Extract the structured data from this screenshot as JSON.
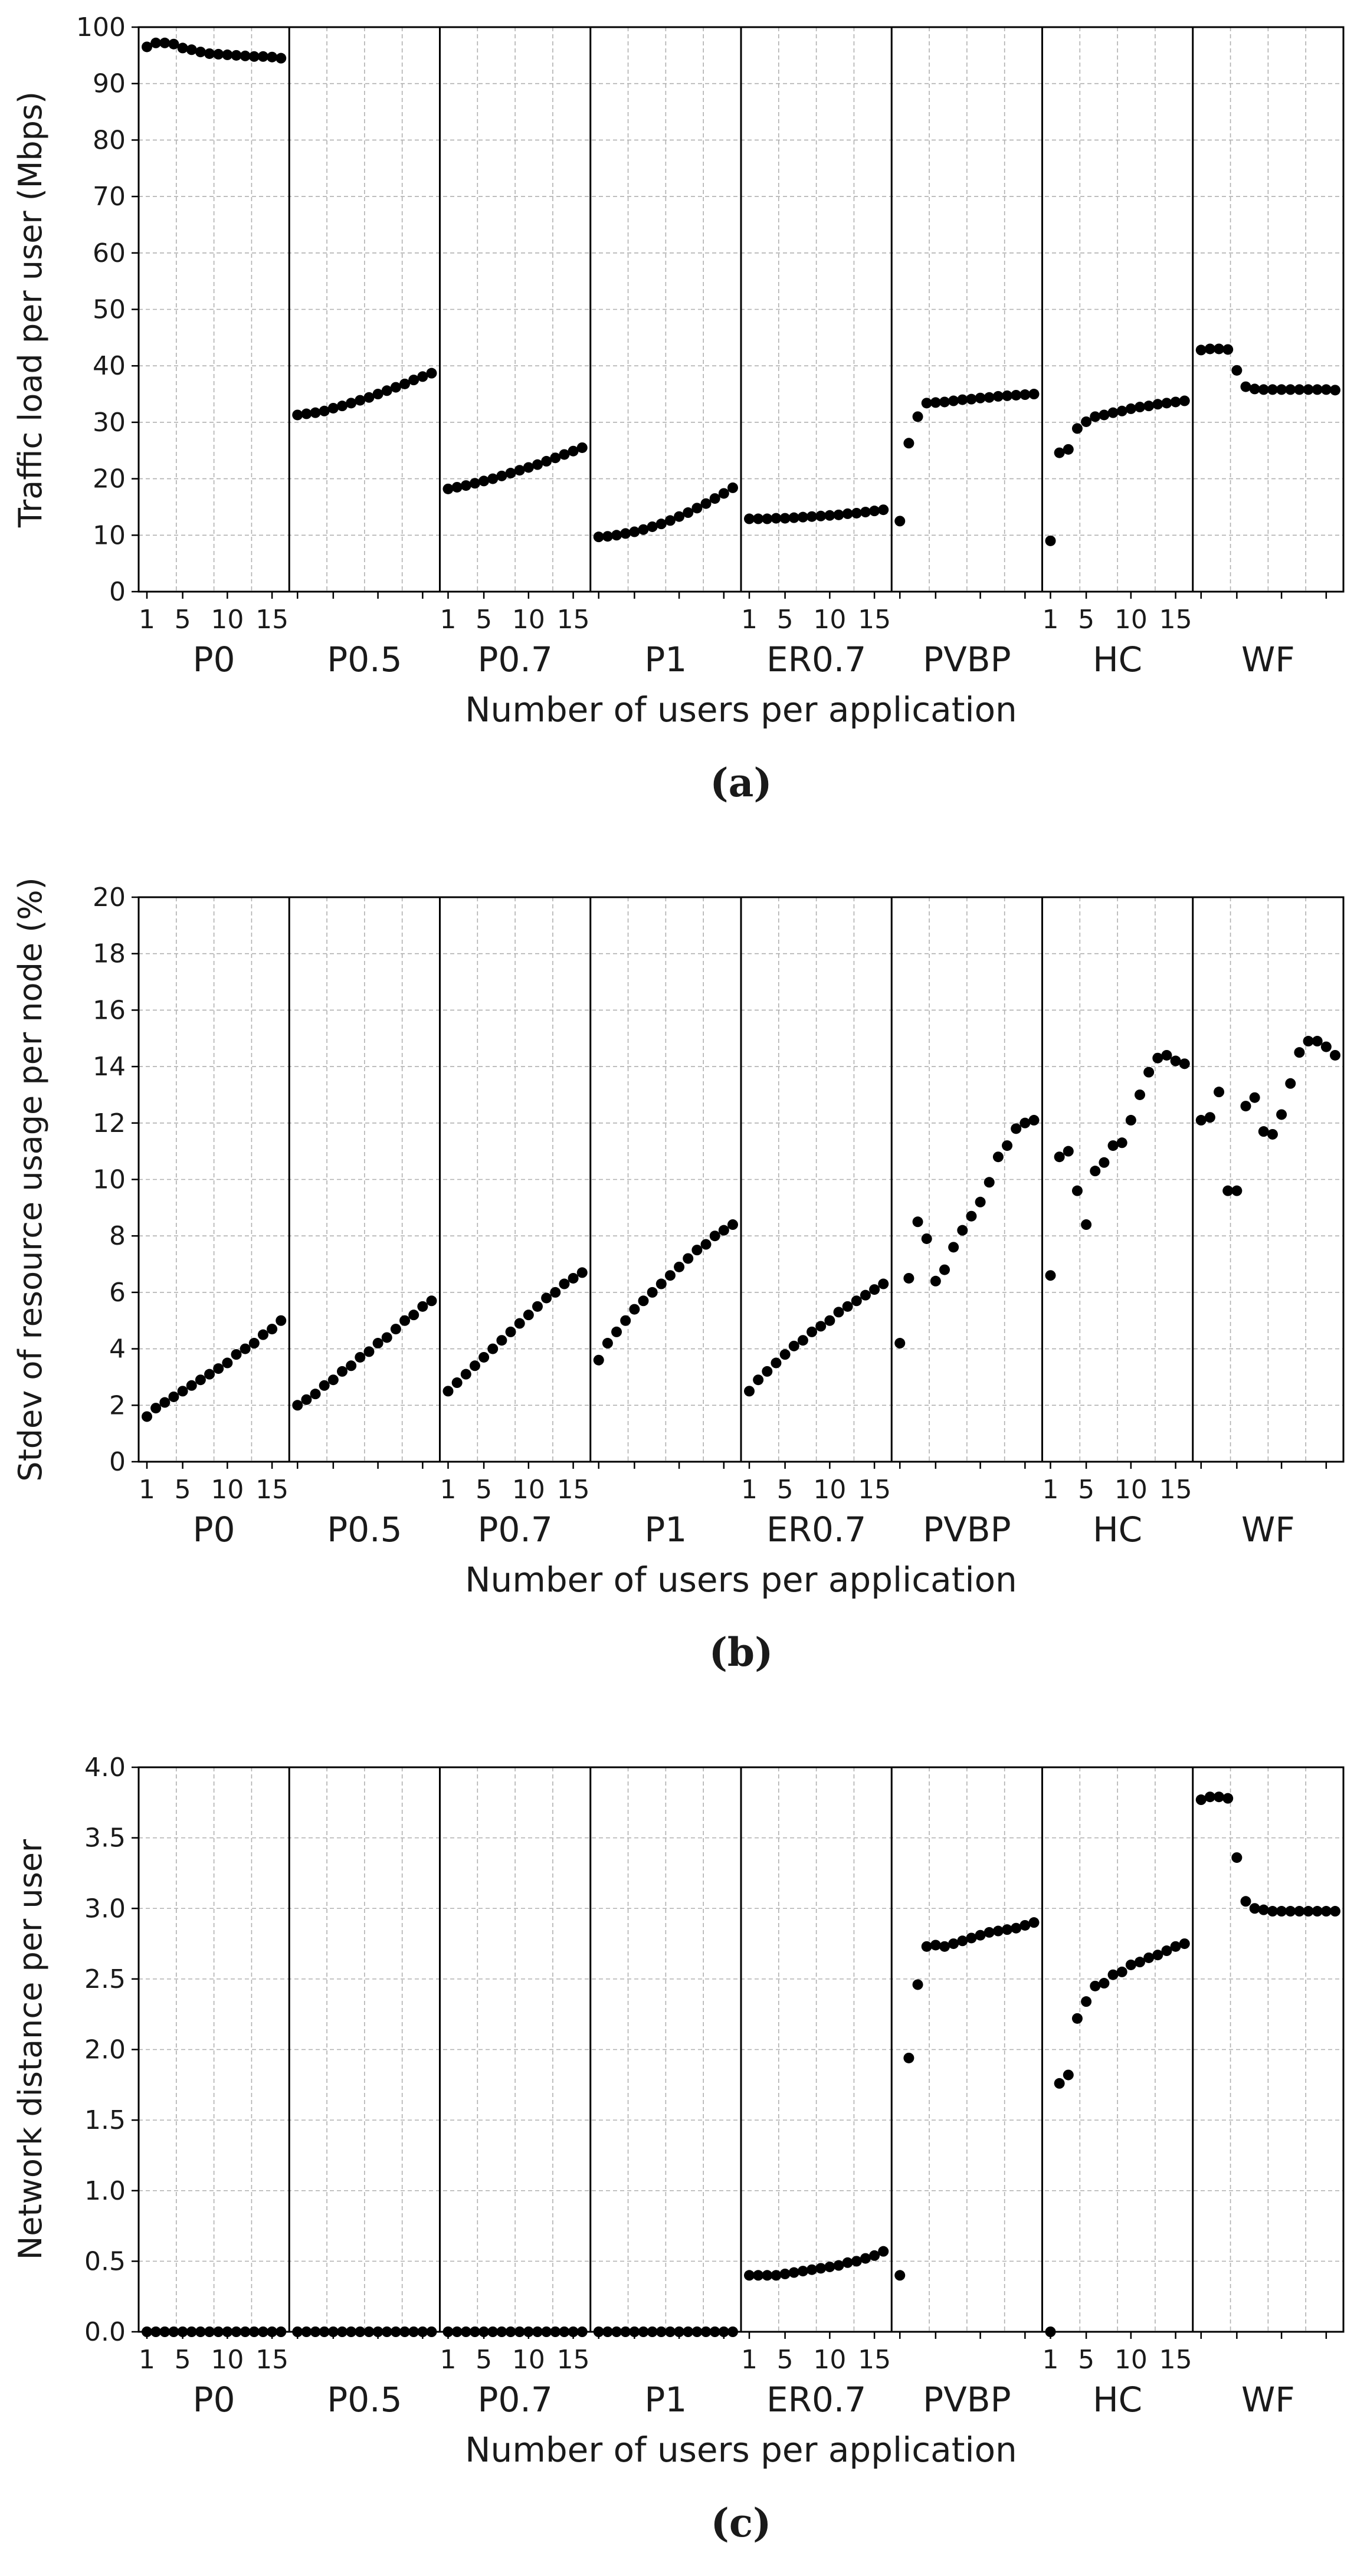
{
  "figure": {
    "panel_letters": [
      "a",
      "b",
      "c"
    ],
    "xlabel": "Number of users per application",
    "groups": [
      "P0",
      "P0.5",
      "P0.7",
      "P1",
      "ER0.7",
      "PVBP",
      "HC",
      "WF"
    ],
    "group_tick_labels": [
      "1",
      "5",
      "10",
      "15"
    ],
    "groups_with_tick_labels": [
      "P0",
      "P0.7",
      "ER0.7",
      "HC"
    ],
    "colors": {
      "marker": "#000000",
      "grid": "#b0b0b0",
      "axis": "#000000"
    }
  },
  "chart_data": [
    {
      "type": "scatter",
      "title": "",
      "panel": "(a)",
      "ylabel": "Traffic load per user (Mbps)",
      "xlabel": "Number of users per application",
      "ylim": [
        0,
        100
      ],
      "yticks": [
        0,
        10,
        20,
        30,
        40,
        50,
        60,
        70,
        80,
        90,
        100
      ],
      "grid": true,
      "x": [
        1,
        2,
        3,
        4,
        5,
        6,
        7,
        8,
        9,
        10,
        11,
        12,
        13,
        14,
        15,
        16
      ],
      "series": [
        {
          "group": "P0",
          "values": [
            96.5,
            97.2,
            97.2,
            97.0,
            96.3,
            96.0,
            95.6,
            95.3,
            95.2,
            95.1,
            95.0,
            94.9,
            94.8,
            94.8,
            94.7,
            94.5
          ]
        },
        {
          "group": "P0.5",
          "values": [
            31.3,
            31.5,
            31.7,
            32.0,
            32.5,
            32.9,
            33.4,
            33.9,
            34.4,
            35.0,
            35.6,
            36.2,
            36.8,
            37.5,
            38.1,
            38.7
          ]
        },
        {
          "group": "P0.7",
          "values": [
            18.2,
            18.5,
            18.8,
            19.2,
            19.6,
            20.0,
            20.5,
            21.0,
            21.5,
            22.0,
            22.5,
            23.1,
            23.7,
            24.3,
            24.9,
            25.5
          ]
        },
        {
          "group": "P1",
          "values": [
            9.7,
            9.8,
            10.0,
            10.3,
            10.6,
            11.0,
            11.5,
            12.0,
            12.6,
            13.3,
            14.0,
            14.8,
            15.6,
            16.5,
            17.4,
            18.4
          ]
        },
        {
          "group": "ER0.7",
          "values": [
            12.9,
            12.9,
            12.9,
            13.0,
            13.0,
            13.1,
            13.2,
            13.3,
            13.4,
            13.5,
            13.6,
            13.8,
            13.9,
            14.1,
            14.3,
            14.5
          ]
        },
        {
          "group": "PVBP",
          "values": [
            12.5,
            26.3,
            31.0,
            33.4,
            33.5,
            33.6,
            33.8,
            34.0,
            34.1,
            34.3,
            34.4,
            34.6,
            34.7,
            34.8,
            34.9,
            35.0
          ]
        },
        {
          "group": "HC",
          "values": [
            9.0,
            24.6,
            25.2,
            28.9,
            30.1,
            31.0,
            31.3,
            31.7,
            32.0,
            32.4,
            32.7,
            32.9,
            33.2,
            33.4,
            33.6,
            33.8
          ]
        },
        {
          "group": "WF",
          "values": [
            42.8,
            43.0,
            43.0,
            42.9,
            39.2,
            36.3,
            35.9,
            35.8,
            35.8,
            35.8,
            35.8,
            35.8,
            35.8,
            35.8,
            35.8,
            35.7
          ]
        }
      ]
    },
    {
      "type": "scatter",
      "title": "",
      "panel": "(b)",
      "ylabel": "Stdev of resource usage per node (%)",
      "xlabel": "Number of users per application",
      "ylim": [
        0,
        20
      ],
      "yticks": [
        0,
        2,
        4,
        6,
        8,
        10,
        12,
        14,
        16,
        18,
        20
      ],
      "grid": true,
      "x": [
        1,
        2,
        3,
        4,
        5,
        6,
        7,
        8,
        9,
        10,
        11,
        12,
        13,
        14,
        15,
        16
      ],
      "series": [
        {
          "group": "P0",
          "values": [
            1.6,
            1.9,
            2.1,
            2.3,
            2.5,
            2.7,
            2.9,
            3.1,
            3.3,
            3.5,
            3.8,
            4.0,
            4.2,
            4.5,
            4.7,
            5.0
          ]
        },
        {
          "group": "P0.5",
          "values": [
            2.0,
            2.2,
            2.4,
            2.7,
            2.9,
            3.2,
            3.4,
            3.7,
            3.9,
            4.2,
            4.4,
            4.7,
            5.0,
            5.2,
            5.5,
            5.7
          ]
        },
        {
          "group": "P0.7",
          "values": [
            2.5,
            2.8,
            3.1,
            3.4,
            3.7,
            4.0,
            4.3,
            4.6,
            4.9,
            5.2,
            5.5,
            5.8,
            6.0,
            6.3,
            6.5,
            6.7
          ]
        },
        {
          "group": "P1",
          "values": [
            3.6,
            4.2,
            4.6,
            5.0,
            5.4,
            5.7,
            6.0,
            6.3,
            6.6,
            6.9,
            7.2,
            7.5,
            7.7,
            8.0,
            8.2,
            8.4
          ]
        },
        {
          "group": "ER0.7",
          "values": [
            2.5,
            2.9,
            3.2,
            3.5,
            3.8,
            4.1,
            4.3,
            4.6,
            4.8,
            5.0,
            5.3,
            5.5,
            5.7,
            5.9,
            6.1,
            6.3
          ]
        },
        {
          "group": "PVBP",
          "values": [
            4.2,
            6.5,
            8.5,
            7.9,
            6.4,
            6.8,
            7.6,
            8.2,
            8.7,
            9.2,
            9.9,
            10.8,
            11.2,
            11.8,
            12.0,
            12.1
          ]
        },
        {
          "group": "HC",
          "values": [
            6.6,
            10.8,
            11.0,
            9.6,
            8.4,
            10.3,
            10.6,
            11.2,
            11.3,
            12.1,
            13.0,
            13.8,
            14.3,
            14.4,
            14.2,
            14.1
          ]
        },
        {
          "group": "WF",
          "values": [
            12.1,
            12.2,
            13.1,
            9.6,
            9.6,
            12.6,
            12.9,
            11.7,
            11.6,
            12.3,
            13.4,
            14.5,
            14.9,
            14.9,
            14.7,
            14.4
          ]
        }
      ]
    },
    {
      "type": "scatter",
      "title": "",
      "panel": "(c)",
      "ylabel": "Network distance per user",
      "xlabel": "Number of users per application",
      "ylim": [
        0,
        4
      ],
      "yticks": [
        0.0,
        0.5,
        1.0,
        1.5,
        2.0,
        2.5,
        3.0,
        3.5,
        4.0
      ],
      "grid": true,
      "x": [
        1,
        2,
        3,
        4,
        5,
        6,
        7,
        8,
        9,
        10,
        11,
        12,
        13,
        14,
        15,
        16
      ],
      "series": [
        {
          "group": "P0",
          "values": [
            0,
            0,
            0,
            0,
            0,
            0,
            0,
            0,
            0,
            0,
            0,
            0,
            0,
            0,
            0,
            0
          ]
        },
        {
          "group": "P0.5",
          "values": [
            0,
            0,
            0,
            0,
            0,
            0,
            0,
            0,
            0,
            0,
            0,
            0,
            0,
            0,
            0,
            0
          ]
        },
        {
          "group": "P0.7",
          "values": [
            0,
            0,
            0,
            0,
            0,
            0,
            0,
            0,
            0,
            0,
            0,
            0,
            0,
            0,
            0,
            0
          ]
        },
        {
          "group": "P1",
          "values": [
            0,
            0,
            0,
            0,
            0,
            0,
            0,
            0,
            0,
            0,
            0,
            0,
            0,
            0,
            0,
            0
          ]
        },
        {
          "group": "ER0.7",
          "values": [
            0.4,
            0.4,
            0.4,
            0.4,
            0.41,
            0.42,
            0.43,
            0.44,
            0.45,
            0.46,
            0.47,
            0.49,
            0.5,
            0.52,
            0.54,
            0.57
          ]
        },
        {
          "group": "PVBP",
          "values": [
            0.4,
            1.94,
            2.46,
            2.73,
            2.74,
            2.73,
            2.75,
            2.77,
            2.79,
            2.81,
            2.83,
            2.84,
            2.85,
            2.86,
            2.88,
            2.9
          ]
        },
        {
          "group": "HC",
          "values": [
            0.0,
            1.76,
            1.82,
            2.22,
            2.34,
            2.45,
            2.47,
            2.53,
            2.55,
            2.6,
            2.62,
            2.65,
            2.67,
            2.7,
            2.73,
            2.75
          ]
        },
        {
          "group": "WF",
          "values": [
            3.77,
            3.79,
            3.79,
            3.78,
            3.36,
            3.05,
            3.0,
            2.99,
            2.98,
            2.98,
            2.98,
            2.98,
            2.98,
            2.98,
            2.98,
            2.98
          ]
        }
      ]
    }
  ]
}
